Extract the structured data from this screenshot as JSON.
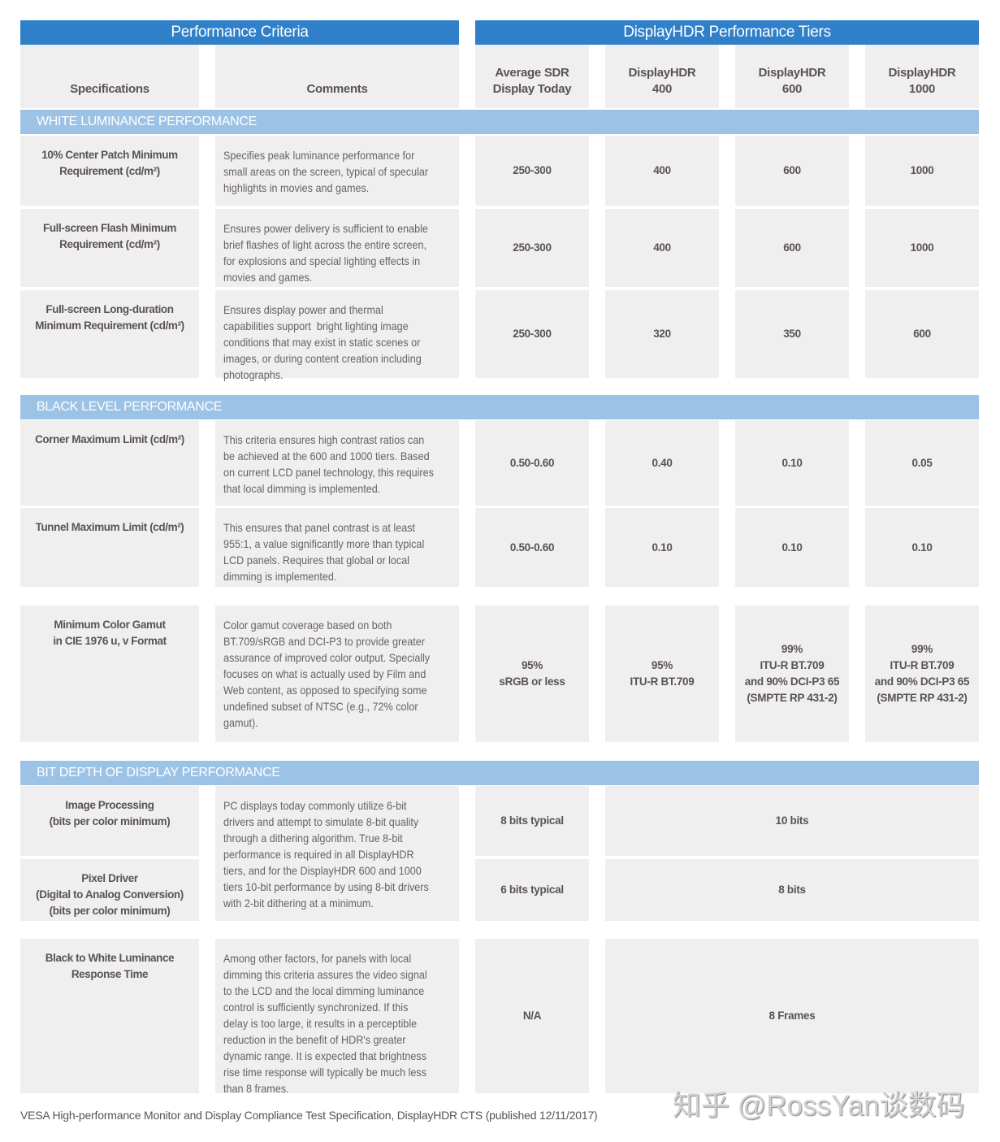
{
  "header": {
    "criteria_title": "Performance Criteria",
    "tiers_title": "DisplayHDR Performance Tiers",
    "columns": [
      "Specifications",
      "Comments",
      "Average SDR\nDisplay Today",
      "DisplayHDR\n400",
      "DisplayHDR\n600",
      "DisplayHDR\n1000"
    ]
  },
  "colors": {
    "header_blue": "#2f7fc9",
    "section_blue": "#9cc2e5",
    "cell_gray": "#efefef",
    "text": "#5b5350"
  },
  "sections": [
    {
      "title": "WHITE LUMINANCE PERFORMANCE"
    },
    {
      "title": "BLACK LEVEL PERFORMANCE"
    },
    {
      "title": "BIT DEPTH OF DISPLAY PERFORMANCE"
    }
  ],
  "rows": [
    {
      "spec": "10% Center Patch Minimum\nRequirement (cd/m²)",
      "comment": "Specifies peak luminance performance for\nsmall areas on the screen, typical of specular\nhighlights in movies and games.",
      "values": [
        "250-300",
        "400",
        "600",
        "1000"
      ]
    },
    {
      "spec": "Full-screen Flash Minimum\nRequirement (cd/m²)",
      "comment": "Ensures power delivery is sufficient to enable\nbrief flashes of light across the entire screen,\nfor explosions and special lighting effects in\nmovies and games.",
      "values": [
        "250-300",
        "400",
        "600",
        "1000"
      ]
    },
    {
      "spec": "Full-screen Long-duration\nMinimum Requirement (cd/m²)",
      "comment": "Ensures display power and thermal\ncapabilities support  bright lighting image\nconditions that may exist in static scenes or\nimages, or during content creation including\nphotographs.",
      "values": [
        "250-300",
        "320",
        "350",
        "600"
      ]
    },
    {
      "spec": "Corner Maximum Limit (cd/m²)",
      "comment": "This criteria ensures high contrast ratios can\nbe achieved at the 600 and 1000 tiers. Based\non current LCD panel technology, this requires\nthat local dimming is implemented.",
      "values": [
        "0.50-0.60",
        "0.40",
        "0.10",
        "0.05"
      ]
    },
    {
      "spec": "Tunnel Maximum Limit (cd/m²)",
      "comment": "This ensures that panel contrast is at least\n955:1, a value significantly more than typical\nLCD panels. Requires that global or local\ndimming is implemented.",
      "values": [
        "0.50-0.60",
        "0.10",
        "0.10",
        "0.10"
      ]
    },
    {
      "spec": "Minimum Color Gamut\nin CIE 1976 u, v Format",
      "comment": "Color gamut coverage based on both\nBT.709/sRGB and DCI-P3 to provide greater\nassurance of improved color output. Specially\nfocuses on what is actually used by Film and\nWeb content, as opposed to specifying some\nundefined subset of NTSC (e.g., 72% color\ngamut).",
      "values": [
        "95%\nsRGB or less",
        "95%\nITU-R BT.709",
        "99%\nITU-R BT.709\nand 90% DCI-P3 65\n(SMPTE RP 431-2)",
        "99%\nITU-R BT.709\nand 90% DCI-P3 65\n(SMPTE RP 431-2)"
      ]
    },
    {
      "spec": "Image Processing\n(bits per color minimum)",
      "comment": "PC displays today commonly utilize 6-bit\ndrivers and attempt to simulate 8-bit quality\nthrough a dithering algorithm. True 8-bit\nperformance is required in all DisplayHDR\ntiers, and for the DisplayHDR 600 and 1000\ntiers 10-bit performance by using 8-bit drivers\nwith 2-bit dithering at a minimum.",
      "values": [
        "8 bits typical",
        "10 bits"
      ]
    },
    {
      "spec": "Pixel Driver\n(Digital to Analog Conversion)\n(bits per color minimum)",
      "values": [
        "6 bits typical",
        "8 bits"
      ]
    },
    {
      "spec": "Black to White Luminance\nResponse Time",
      "comment": "Among other factors, for panels with local\ndimming this criteria assures the video signal\nto the LCD and the local dimming luminance\ncontrol is sufficiently synchronized. If this\ndelay is too large, it results in a perceptible\nreduction in the benefit of HDR's greater\ndynamic range. It is expected that brightness\nrise time response will typically be much less\nthan 8 frames.",
      "values": [
        "N/A",
        "8 Frames"
      ]
    }
  ],
  "footer": "VESA High-performance Monitor and Display Compliance Test Specification, DisplayHDR CTS (published 12/11/2017)",
  "watermark": "知乎 @RossYan谈数码"
}
